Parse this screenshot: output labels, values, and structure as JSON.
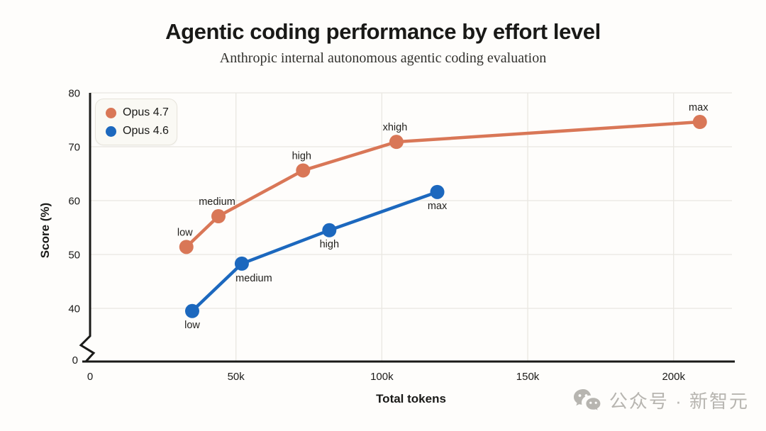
{
  "header": {
    "title": "Agentic coding performance by effort level",
    "subtitle": "Anthropic internal autonomous agentic coding evaluation"
  },
  "chart_data": {
    "type": "line",
    "title": "Agentic coding performance by effort level",
    "subtitle": "Anthropic internal autonomous agentic coding evaluation",
    "xlabel": "Total tokens",
    "ylabel": "Score (%)",
    "xlim": [
      0,
      220000
    ],
    "ylim_display": [
      40,
      80
    ],
    "axis_break": true,
    "broken_origin_label": "0",
    "grid": true,
    "legend_position": "top-left",
    "x_ticks": [
      {
        "value": 0,
        "label": "0"
      },
      {
        "value": 50000,
        "label": "50k"
      },
      {
        "value": 100000,
        "label": "100k"
      },
      {
        "value": 150000,
        "label": "150k"
      },
      {
        "value": 200000,
        "label": "200k"
      }
    ],
    "y_ticks": [
      {
        "value": 40,
        "label": "40"
      },
      {
        "value": 50,
        "label": "50"
      },
      {
        "value": 60,
        "label": "60"
      },
      {
        "value": 70,
        "label": "70"
      },
      {
        "value": 80,
        "label": "80"
      }
    ],
    "series": [
      {
        "name": "Opus 4.7",
        "color": "#d97757",
        "points": [
          {
            "x": 33000,
            "y": 51.4,
            "label": "low",
            "label_side": "above"
          },
          {
            "x": 44000,
            "y": 57.1,
            "label": "medium",
            "label_side": "above"
          },
          {
            "x": 73000,
            "y": 65.6,
            "label": "high",
            "label_side": "above"
          },
          {
            "x": 105000,
            "y": 70.9,
            "label": "xhigh",
            "label_side": "above"
          },
          {
            "x": 209000,
            "y": 74.6,
            "label": "max",
            "label_side": "above"
          }
        ]
      },
      {
        "name": "Opus 4.6",
        "color": "#1c68be",
        "points": [
          {
            "x": 35000,
            "y": 39.5,
            "label": "low",
            "label_side": "below"
          },
          {
            "x": 52000,
            "y": 48.3,
            "label": "medium",
            "label_side": "below-right"
          },
          {
            "x": 82000,
            "y": 54.5,
            "label": "high",
            "label_side": "below"
          },
          {
            "x": 119000,
            "y": 61.6,
            "label": "max",
            "label_side": "below"
          }
        ]
      }
    ]
  },
  "watermark": {
    "icon": "wechat-icon",
    "text": "公众号 · 新智元",
    "color": "#b7b5b0"
  },
  "style": {
    "background": "#fefdfb",
    "grid_color": "#e9e7e1",
    "axis_color": "#1a1a18",
    "tick_text_color": "#1c1b19",
    "point_label_color": "#201f1c"
  }
}
